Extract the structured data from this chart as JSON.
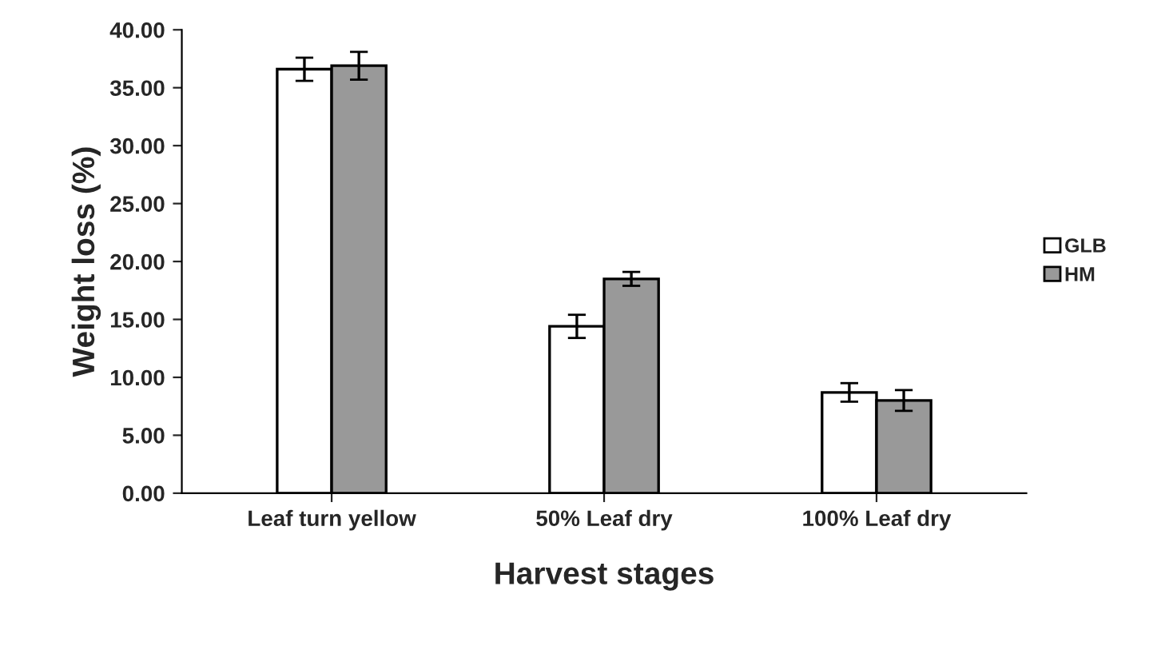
{
  "chart_data": {
    "type": "bar",
    "xlabel": "Harvest stages",
    "ylabel": "Weight loss (%)",
    "categories": [
      "Leaf turn yellow",
      "50% Leaf dry",
      "100% Leaf dry"
    ],
    "series": [
      {
        "name": "GLB",
        "color": "#ffffff",
        "values": [
          36.6,
          14.4,
          8.7
        ],
        "errors": [
          1.0,
          1.0,
          0.8
        ]
      },
      {
        "name": "HM",
        "color": "#999999",
        "values": [
          36.9,
          18.5,
          8.0
        ],
        "errors": [
          1.2,
          0.6,
          0.9
        ]
      }
    ],
    "ylim": [
      0,
      40
    ],
    "yticks": [
      {
        "value": 0,
        "label": "0.00"
      },
      {
        "value": 5,
        "label": "5.00"
      },
      {
        "value": 10,
        "label": "10.00"
      },
      {
        "value": 15,
        "label": "15.00"
      },
      {
        "value": 20,
        "label": "20.00"
      },
      {
        "value": 25,
        "label": "25.00"
      },
      {
        "value": 30,
        "label": "30.00"
      },
      {
        "value": 35,
        "label": "35.00"
      },
      {
        "value": 40,
        "label": "40.00"
      }
    ],
    "grid": false,
    "legend": "right"
  }
}
